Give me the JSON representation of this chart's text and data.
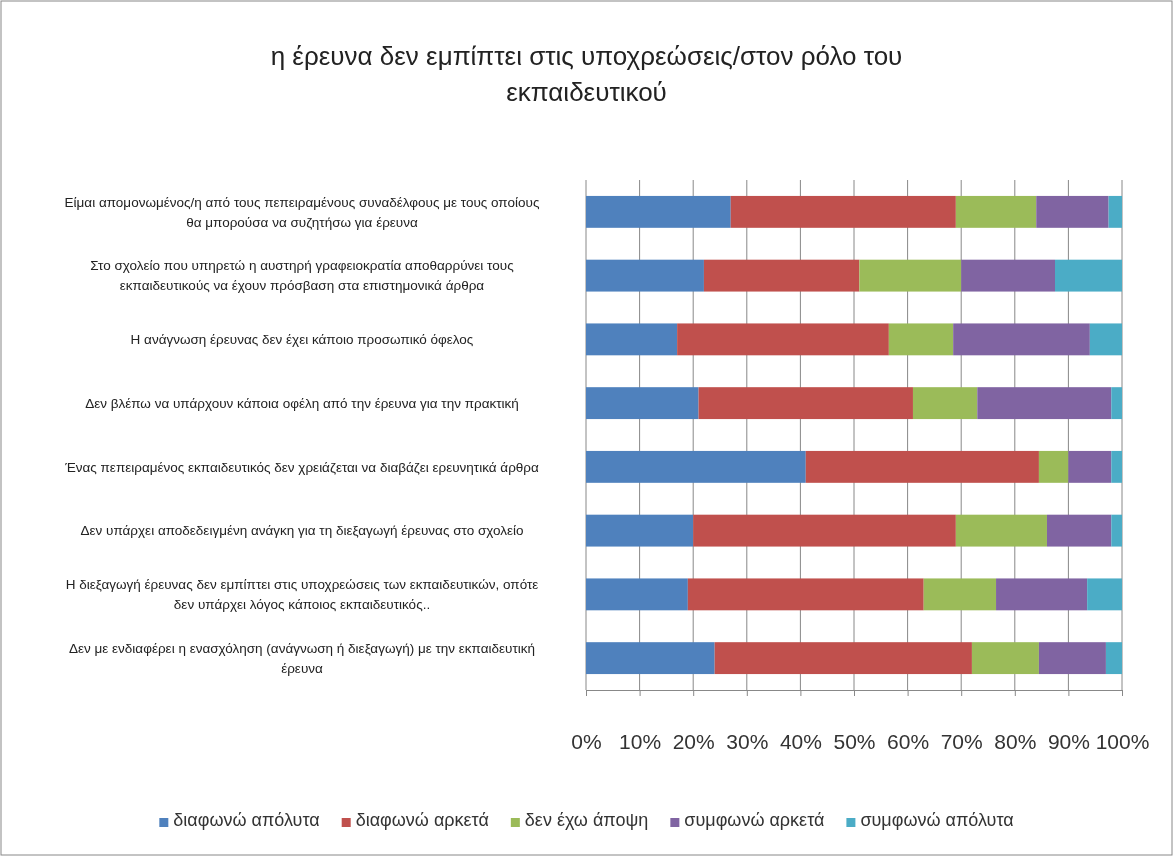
{
  "chart_data": {
    "type": "bar",
    "orientation": "horizontal",
    "stacked": true,
    "title": "η έρευνα δεν εμπίπτει στις υποχρεώσεις/στον ρόλο του εκπαιδευτικού",
    "categories": [
      "Είμαι απομονωμένος/η από τους πεπειραμένους συναδέλφους με τους οποίους θα μπορούσα να συζητήσω για έρευνα",
      "Στο σχολείο που υπηρετώ η αυστηρή γραφειοκρατία αποθαρρύνει τους εκπαιδευτικούς να έχουν πρόσβαση στα επιστημονικά άρθρα",
      "Η ανάγνωση έρευνας δεν έχει κάποιο προσωπικό όφελος",
      "Δεν βλέπω να υπάρχουν κάποια οφέλη από την έρευνα για την πρακτική",
      "Ένας πεπειραμένος εκπαιδευτικός δεν χρειάζεται να διαβάζει ερευνητικά άρθρα",
      "Δεν υπάρχει αποδεδειγμένη ανάγκη για τη διεξαγωγή έρευνας στο σχολείο",
      "Η διεξαγωγή έρευνας δεν εμπίπτει στις υποχρεώσεις των εκπαιδευτικών, οπότε δεν υπάρχει λόγος κάποιος εκπαιδευτικός..",
      "Δεν με ενδιαφέρει η ενασχόληση (ανάγνωση ή διεξαγωγή) με την εκπαιδευτική έρευνα"
    ],
    "series": [
      {
        "name": "διαφωνώ απόλυτα",
        "color": "#4f81bd",
        "values": [
          27,
          22,
          17,
          21,
          41,
          20,
          19,
          24
        ]
      },
      {
        "name": "διαφωνώ αρκετά",
        "color": "#c0504d",
        "values": [
          42,
          29,
          39.5,
          40,
          43.5,
          49,
          44,
          48
        ]
      },
      {
        "name": "δεν έχω άποψη",
        "color": "#9bbb59",
        "values": [
          15,
          19,
          12,
          12,
          5.5,
          17,
          13.5,
          12.5
        ]
      },
      {
        "name": "συμφωνώ αρκετά",
        "color": "#8064a2",
        "values": [
          13.5,
          17.5,
          25.5,
          25,
          8,
          12,
          17,
          12.5
        ]
      },
      {
        "name": "συμφωνώ απόλυτα",
        "color": "#4bacc6",
        "values": [
          2.5,
          12.5,
          6,
          2,
          2,
          2,
          6.5,
          3
        ]
      }
    ],
    "xlim": [
      0,
      100
    ],
    "xticks": [
      {
        "value": 0,
        "label": "0%"
      },
      {
        "value": 10,
        "label": "10%"
      },
      {
        "value": 20,
        "label": "20%"
      },
      {
        "value": 30,
        "label": "30%"
      },
      {
        "value": 40,
        "label": "40%"
      },
      {
        "value": 50,
        "label": "50%"
      },
      {
        "value": 60,
        "label": "60%"
      },
      {
        "value": 70,
        "label": "70%"
      },
      {
        "value": 80,
        "label": "80%"
      },
      {
        "value": 90,
        "label": "90%"
      },
      {
        "value": 100,
        "label": "100%"
      }
    ],
    "grid": "x",
    "legend": "bottom"
  }
}
